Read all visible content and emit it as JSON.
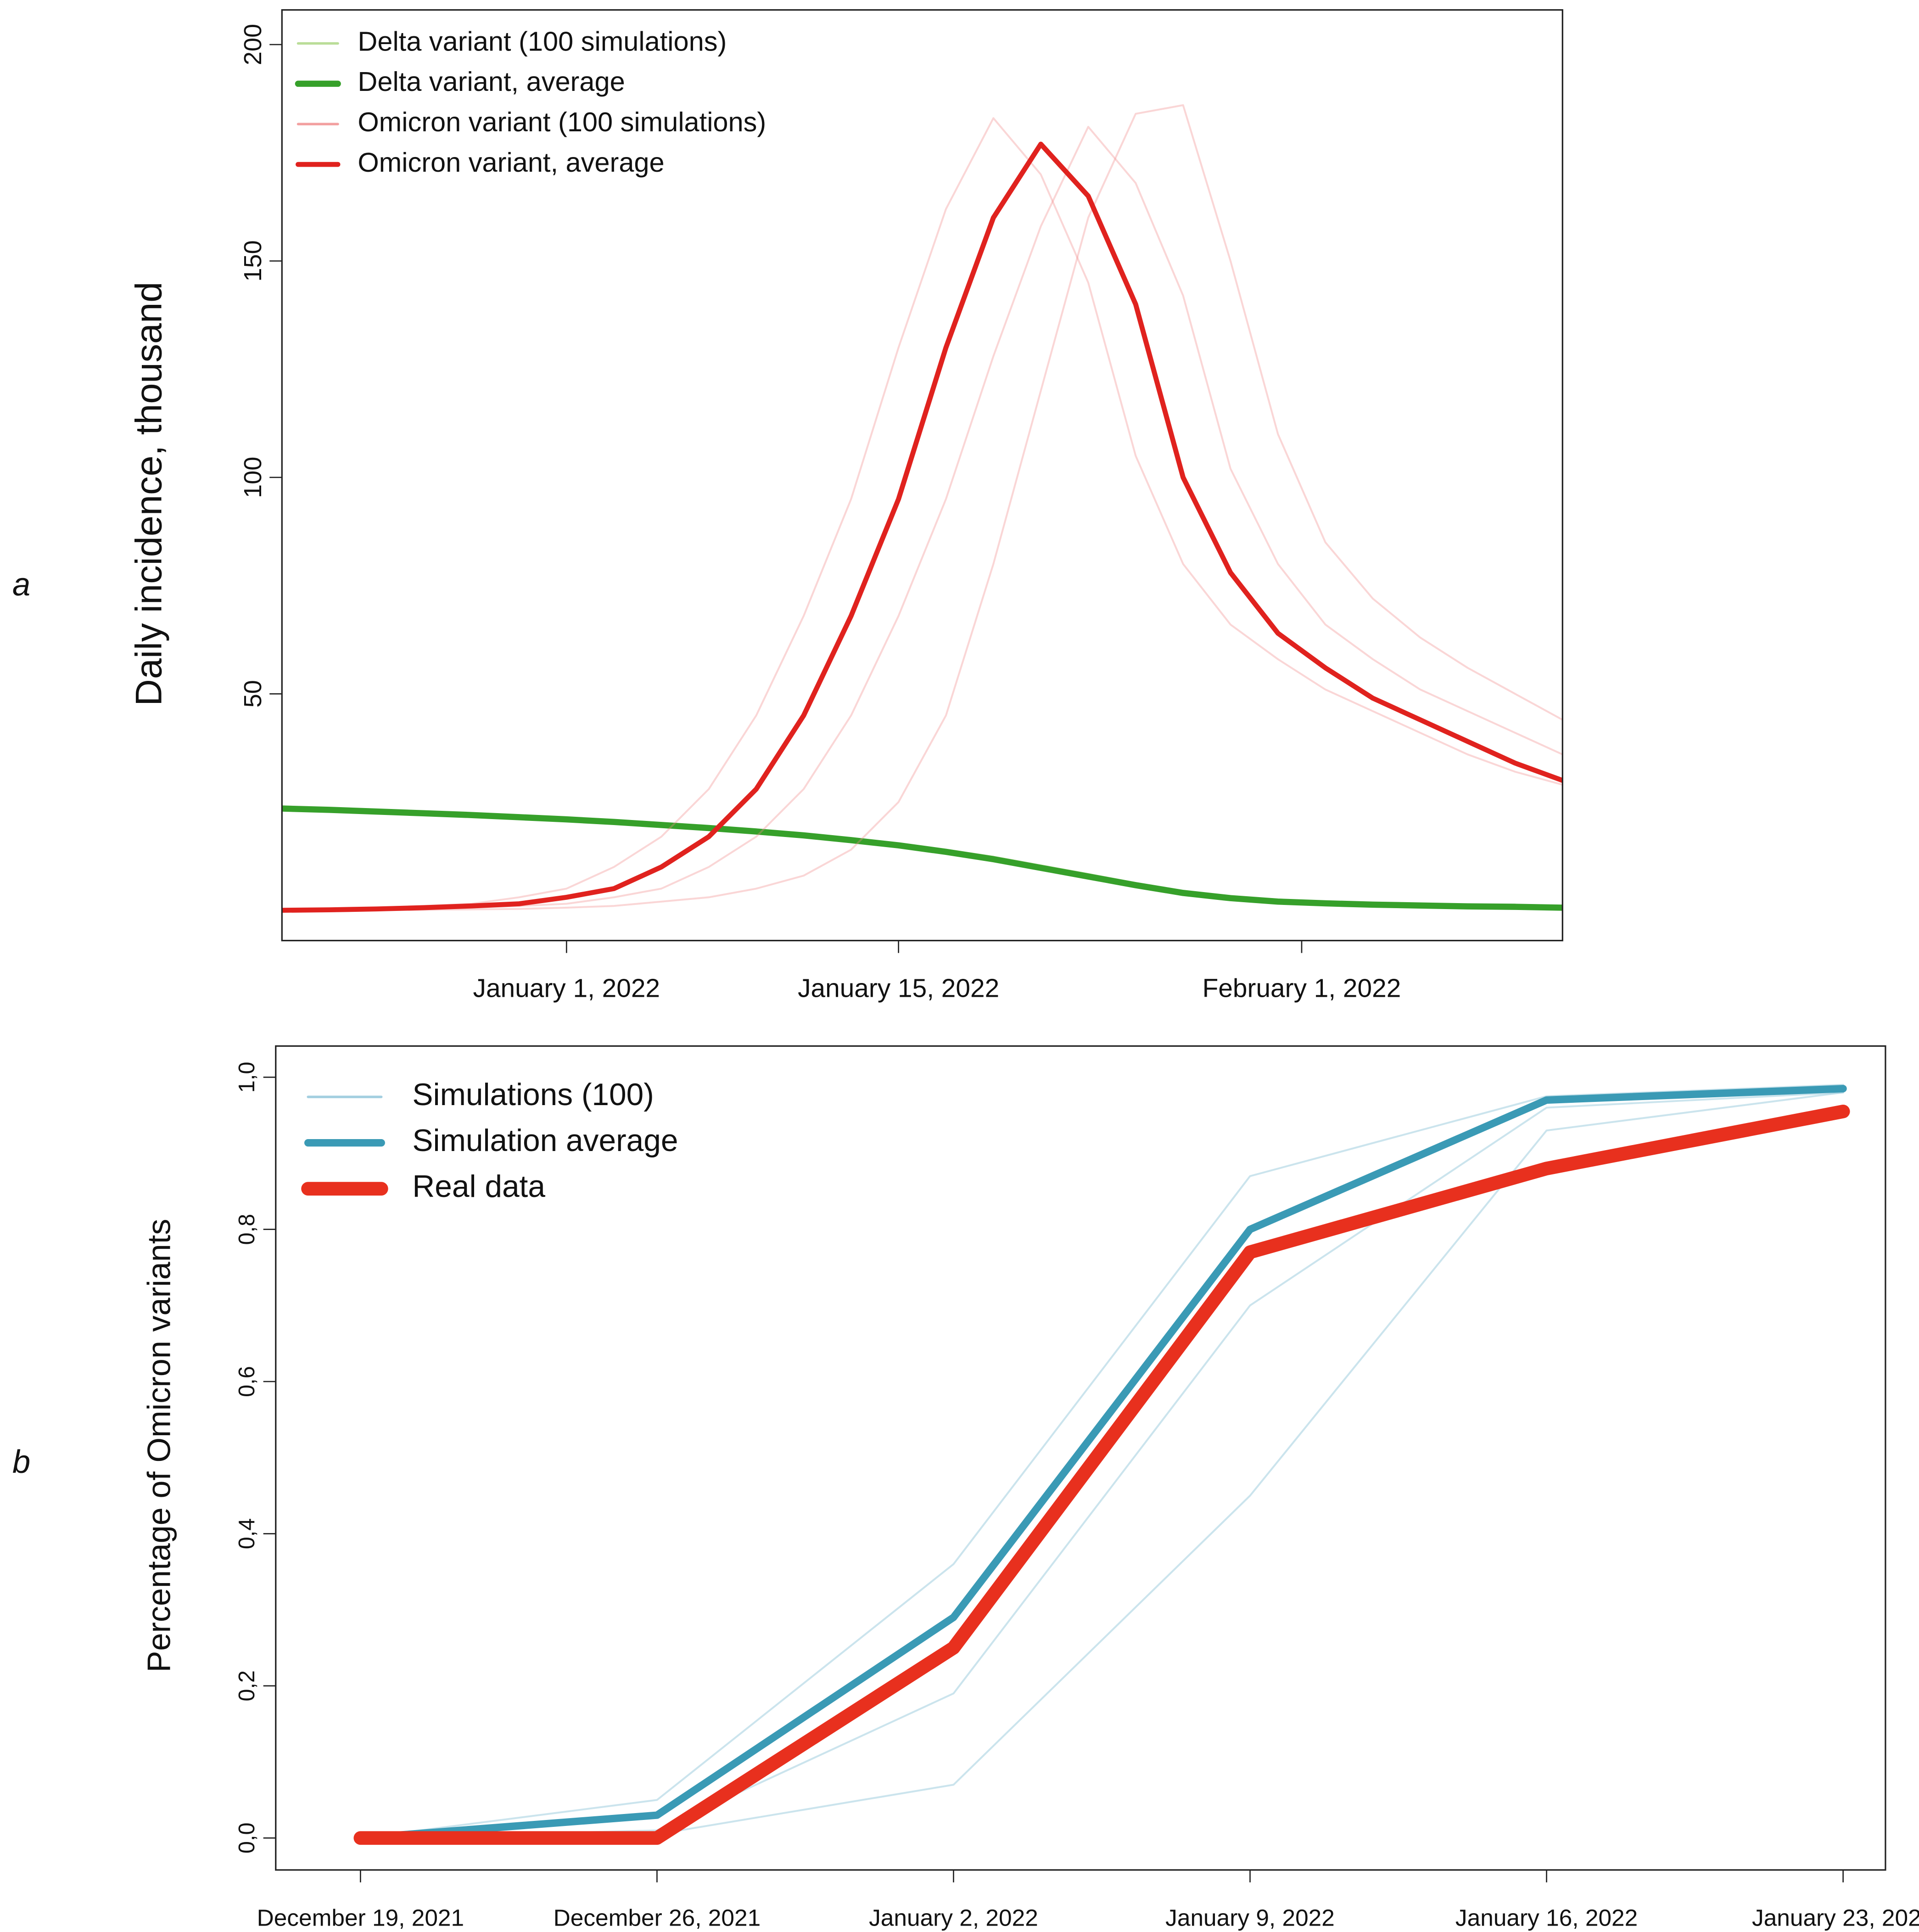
{
  "chart_data": [
    {
      "type": "line",
      "panel_label": "a",
      "ylabel": "Daily incidence, thousand",
      "x": [
        "2021-12-20",
        "2021-12-22",
        "2021-12-24",
        "2021-12-26",
        "2021-12-28",
        "2021-12-30",
        "2022-01-01",
        "2022-01-03",
        "2022-01-05",
        "2022-01-07",
        "2022-01-09",
        "2022-01-11",
        "2022-01-13",
        "2022-01-15",
        "2022-01-17",
        "2022-01-19",
        "2022-01-21",
        "2022-01-23",
        "2022-01-25",
        "2022-01-27",
        "2022-01-29",
        "2022-01-31",
        "2022-02-02",
        "2022-02-04",
        "2022-02-06",
        "2022-02-08",
        "2022-02-10",
        "2022-02-12"
      ],
      "xlim": [
        "2021-12-20",
        "2022-02-12"
      ],
      "xticks": [
        {
          "value": "2022-01-01",
          "label": "January 1, 2022"
        },
        {
          "value": "2022-01-15",
          "label": "January 15, 2022"
        },
        {
          "value": "2022-02-01",
          "label": "February 1, 2022"
        }
      ],
      "ylim": [
        -7,
        208
      ],
      "yticks": [
        50,
        100,
        150,
        200
      ],
      "series": [
        {
          "name": "Delta variant (100 simulations)",
          "color": "#a9d47e",
          "line_width": 1.5,
          "opacity": 0.45,
          "values": [
            [
              23.8,
              23.4,
              23,
              22.6,
              22.1,
              21.7,
              21.2,
              20.6,
              19.9,
              19.2,
              18.5,
              17.6,
              16.6,
              15.4,
              14,
              12.4,
              10.4,
              8.4,
              6.3,
              4.4,
              3.1,
              2.2,
              1.7,
              1.4,
              1.2,
              1,
              0.9,
              0.7
            ],
            [
              23.2,
              22.9,
              22.5,
              22.1,
              21.7,
              21.2,
              20.7,
              20.1,
              19.4,
              18.7,
              17.9,
              17,
              15.9,
              14.6,
              13.1,
              11.3,
              9.3,
              7.3,
              5.4,
              3.7,
              2.6,
              1.9,
              1.5,
              1.2,
              1,
              0.8,
              0.7,
              0.5
            ]
          ]
        },
        {
          "name": "Delta variant, average",
          "color": "#36a02a",
          "line_width": 5,
          "opacity": 1,
          "values": [
            23.5,
            23.2,
            22.8,
            22.4,
            22,
            21.5,
            21,
            20.4,
            19.7,
            19,
            18.2,
            17.3,
            16.2,
            15,
            13.5,
            11.8,
            9.8,
            7.8,
            5.8,
            4,
            2.8,
            2,
            1.6,
            1.3,
            1.1,
            0.9,
            0.8,
            0.6
          ]
        },
        {
          "name": "Omicron variant (100 simulations)",
          "color": "#f08a8a",
          "line_width": 1.5,
          "opacity": 0.35,
          "values": [
            [
              0.1,
              0.3,
              0.6,
              1,
              1.5,
              3,
              5,
              10,
              17,
              28,
              45,
              68,
              95,
              130,
              162,
              183,
              170,
              145,
              105,
              80,
              66,
              58,
              51,
              46,
              41,
              36,
              32,
              29
            ],
            [
              0,
              0,
              0.1,
              0.3,
              0.6,
              1,
              1.5,
              3,
              5,
              10,
              17,
              28,
              45,
              68,
              95,
              128,
              158,
              181,
              168,
              142,
              102,
              80,
              66,
              58,
              51,
              46,
              41,
              36
            ],
            [
              0,
              0,
              0,
              0.1,
              0.2,
              0.3,
              0.6,
              1,
              2,
              3,
              5,
              8,
              14,
              25,
              45,
              80,
              120,
              160,
              184,
              186,
              150,
              110,
              85,
              72,
              63,
              56,
              50,
              44
            ]
          ]
        },
        {
          "name": "Omicron variant, average",
          "color": "#e0221e",
          "line_width": 4,
          "opacity": 1,
          "values": [
            0,
            0.1,
            0.3,
            0.6,
            1,
            1.5,
            3,
            5,
            10,
            17,
            28,
            45,
            68,
            95,
            130,
            160,
            177,
            165,
            140,
            100,
            78,
            64,
            56,
            49,
            44,
            39,
            34,
            30
          ]
        }
      ]
    },
    {
      "type": "line",
      "panel_label": "b",
      "ylabel": "Percentage of Omicron variants",
      "x": [
        "2021-12-19",
        "2021-12-26",
        "2022-01-02",
        "2022-01-09",
        "2022-01-16",
        "2022-01-23"
      ],
      "xlim": [
        "2021-12-17",
        "2022-01-24"
      ],
      "xticks": [
        {
          "value": "2021-12-19",
          "label": "December 19, 2021"
        },
        {
          "value": "2021-12-26",
          "label": "December 26, 2021"
        },
        {
          "value": "2022-01-02",
          "label": "January 2, 2022"
        },
        {
          "value": "2022-01-09",
          "label": "January 9, 2022"
        },
        {
          "value": "2022-01-16",
          "label": "January 16, 2022"
        },
        {
          "value": "2022-01-23",
          "label": "January 23, 2022"
        }
      ],
      "ylim": [
        -0.042,
        1.041
      ],
      "yticks": [
        {
          "value": 0,
          "label": "0,0"
        },
        {
          "value": 0.2,
          "label": "0,2"
        },
        {
          "value": 0.4,
          "label": "0,4"
        },
        {
          "value": 0.6,
          "label": "0,6"
        },
        {
          "value": 0.8,
          "label": "0,8"
        },
        {
          "value": 1,
          "label": "1,0"
        }
      ],
      "series": [
        {
          "name": "Simulations (100)",
          "color": "#8cc3d8",
          "line_width": 1.5,
          "opacity": 0.45,
          "values": [
            [
              0,
              0.05,
              0.36,
              0.87,
              0.975,
              0.99
            ],
            [
              0,
              0.01,
              0.19,
              0.7,
              0.96,
              0.98
            ],
            [
              0,
              0.005,
              0.07,
              0.45,
              0.93,
              0.98
            ]
          ]
        },
        {
          "name": "Simulation average",
          "color": "#3a9ab5",
          "line_width": 6,
          "opacity": 1,
          "values": [
            0,
            0.03,
            0.29,
            0.8,
            0.97,
            0.985
          ]
        },
        {
          "name": "Real data",
          "color": "#e8301e",
          "line_width": 11,
          "opacity": 1,
          "values": [
            0,
            0,
            0.25,
            0.77,
            0.88,
            0.955
          ]
        }
      ]
    }
  ]
}
